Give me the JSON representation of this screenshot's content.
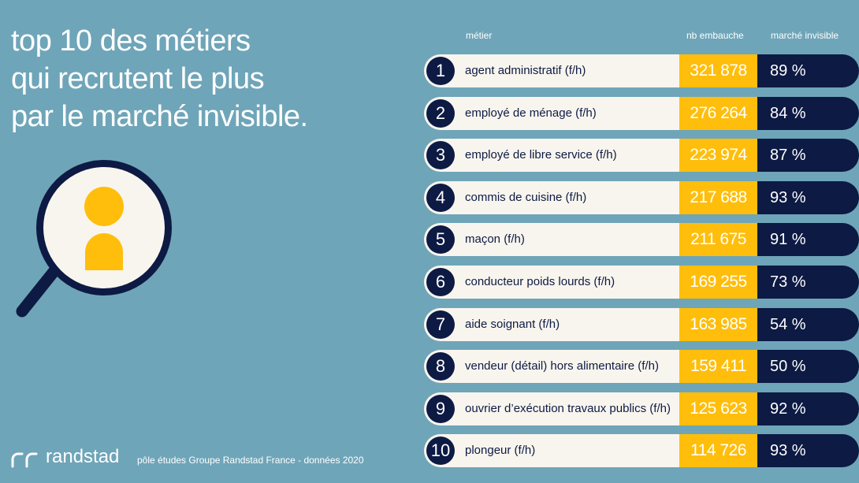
{
  "title": {
    "lines": [
      "top 10 des métiers",
      "qui recrutent le plus",
      "par le marché invisible."
    ]
  },
  "headers": {
    "job": "métier",
    "hires": "nb embauche",
    "market": "marché invisible"
  },
  "rows": [
    {
      "rank": "1",
      "job": "agent administratif (f/h)",
      "hires": "321 878",
      "market": "89 %"
    },
    {
      "rank": "2",
      "job": "employé de ménage (f/h)",
      "hires": "276 264",
      "market": "84 %"
    },
    {
      "rank": "3",
      "job": "employé de libre service (f/h)",
      "hires": "223 974",
      "market": "87 %"
    },
    {
      "rank": "4",
      "job": "commis de cuisine (f/h)",
      "hires": "217 688",
      "market": "93 %"
    },
    {
      "rank": "5",
      "job": "maçon (f/h)",
      "hires": "211 675",
      "market": "91 %"
    },
    {
      "rank": "6",
      "job": "conducteur poids lourds (f/h)",
      "hires": "169 255",
      "market": "73 %"
    },
    {
      "rank": "7",
      "job": "aide soignant (f/h)",
      "hires": "163 985",
      "market": "54 %"
    },
    {
      "rank": "8",
      "job": "vendeur (détail) hors alimentaire (f/h)",
      "hires": "159 411",
      "market": "50 %"
    },
    {
      "rank": "9",
      "job": "ouvrier d’exécution travaux publics (f/h)",
      "hires": "125 623",
      "market": "92 %"
    },
    {
      "rank": "10",
      "job": "plongeur (f/h)",
      "hires": "114 726",
      "market": "93 %"
    }
  ],
  "footer": {
    "brand": "randstad",
    "source": "pôle études Groupe Randstad France - données 2020"
  },
  "colors": {
    "background": "#6fa5b8",
    "navy": "#0d1a44",
    "yellow": "#ffbe0b",
    "cream": "#f8f5ee"
  },
  "icons": {
    "magnifier": "magnifier-person-icon",
    "logo": "randstad-logo-icon"
  }
}
